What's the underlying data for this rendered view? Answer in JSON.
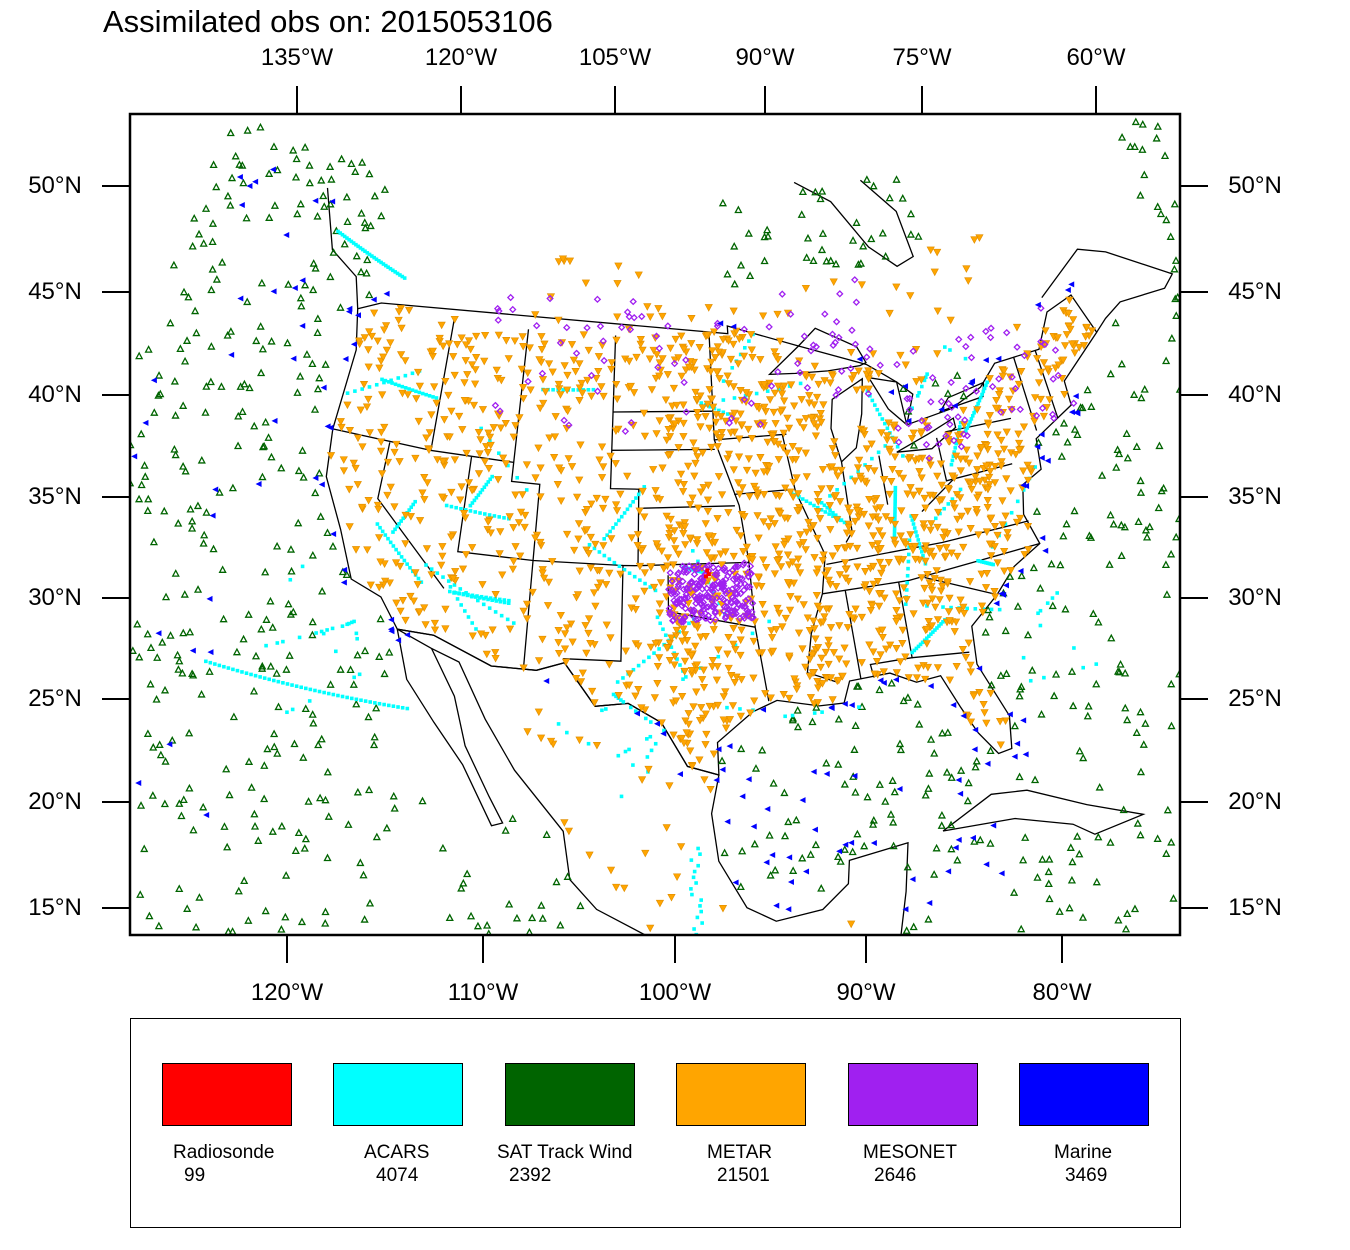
{
  "title": "Assimilated obs on: 2015053106",
  "axes": {
    "top_lon_labels": [
      "135°W",
      "120°W",
      "105°W",
      "90°W",
      "75°W",
      "60°W"
    ],
    "bottom_lon_labels": [
      "120°W",
      "110°W",
      "100°W",
      "90°W",
      "80°W"
    ],
    "lat_labels": [
      "50°N",
      "45°N",
      "40°N",
      "35°N",
      "30°N",
      "25°N",
      "20°N",
      "15°N"
    ]
  },
  "legend": [
    {
      "name": "Radiosonde",
      "count": "99",
      "color": "#ff0000",
      "marker": "none"
    },
    {
      "name": "ACARS",
      "count": "4074",
      "color": "#00ffff",
      "marker": "square"
    },
    {
      "name": "SAT Track Wind",
      "count": "2392",
      "color": "#006400",
      "marker": "hollow-triangle-up"
    },
    {
      "name": "METAR",
      "count": "21501",
      "color": "#ffa500",
      "marker": "filled-triangle-down"
    },
    {
      "name": "MESONET",
      "count": "2646",
      "color": "#a020f0",
      "marker": "hollow-diamond"
    },
    {
      "name": "Marine",
      "count": "3469",
      "color": "#0000ff",
      "marker": "filled-triangle-left"
    }
  ]
}
